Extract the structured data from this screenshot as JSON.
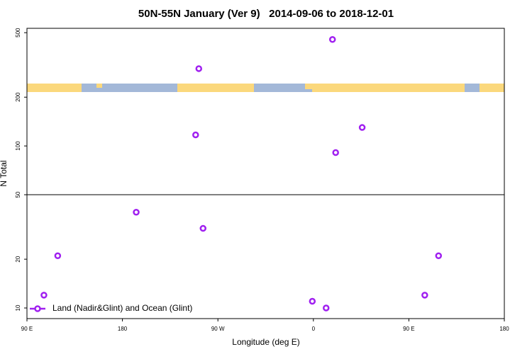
{
  "chart_data": {
    "type": "scatter",
    "title": "50N-55N January (Ver 9)   2014-09-06 to 2018-12-01",
    "x_label": "Longitude (deg E)",
    "y_label": "N Total",
    "log_y": true,
    "xlim": [
      90,
      540
    ],
    "xticks": [
      {
        "value": 90,
        "label": "90 E"
      },
      {
        "value": 180,
        "label": "180"
      },
      {
        "value": 270,
        "label": "90 W"
      },
      {
        "value": 360,
        "label": "0"
      },
      {
        "value": 450,
        "label": "90 E"
      },
      {
        "value": 540,
        "label": "180"
      }
    ],
    "ylim": [
      8.6,
      532
    ],
    "yticks": [
      10,
      20,
      50,
      100,
      200,
      500
    ],
    "hline": 50,
    "legend": "bottom-left",
    "series": [
      {
        "name": "Land (Nadir&Glint) and Ocean (Glint)",
        "color": "#a020f0",
        "x": [
          106,
          119,
          193,
          252,
          249,
          256,
          359,
          372,
          378,
          381,
          406,
          465,
          478
        ],
        "values": [
          12,
          21,
          39,
          300,
          117,
          31,
          11,
          10,
          454,
          91,
          130,
          12,
          21
        ]
      }
    ]
  }
}
